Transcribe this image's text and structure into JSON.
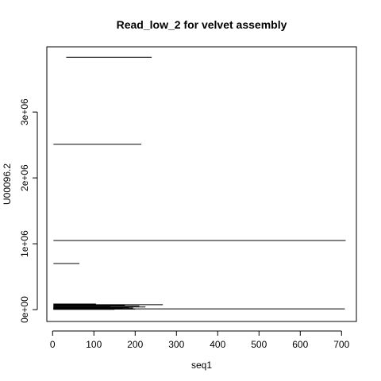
{
  "chart_data": {
    "type": "segments",
    "title": "Read_low_2 for velvet assembly",
    "xlabel": "seq1",
    "ylabel": "U00096.2",
    "xlim": [
      -14,
      736
    ],
    "ylim": [
      -180000,
      3990000
    ],
    "x_ticks": [
      {
        "value": 0,
        "label": "0"
      },
      {
        "value": 100,
        "label": "100"
      },
      {
        "value": 200,
        "label": "200"
      },
      {
        "value": 300,
        "label": "300"
      },
      {
        "value": 400,
        "label": "400"
      },
      {
        "value": 500,
        "label": "500"
      },
      {
        "value": 600,
        "label": "600"
      },
      {
        "value": 700,
        "label": "700"
      }
    ],
    "y_ticks": [
      {
        "value": 0,
        "label": "0e+00"
      },
      {
        "value": 1000000,
        "label": "1e+06"
      },
      {
        "value": 2000000,
        "label": "2e+06"
      },
      {
        "value": 3000000,
        "label": "3e+06"
      }
    ],
    "segments": [
      {
        "x0": 33,
        "x1": 240,
        "y": 3830000
      },
      {
        "x0": 2,
        "x1": 215,
        "y": 2510000
      },
      {
        "x0": 2,
        "x1": 710,
        "y": 1050000
      },
      {
        "x0": 2,
        "x1": 65,
        "y": 700000
      },
      {
        "x0": 2,
        "x1": 267,
        "y": 75000
      },
      {
        "x0": 2,
        "x1": 105,
        "y": 85000
      },
      {
        "x0": 2,
        "x1": 175,
        "y": 65000
      },
      {
        "x0": 2,
        "x1": 210,
        "y": 55000
      },
      {
        "x0": 2,
        "x1": 140,
        "y": 50000
      },
      {
        "x0": 2,
        "x1": 225,
        "y": 40000
      },
      {
        "x0": 2,
        "x1": 185,
        "y": 35000
      },
      {
        "x0": 2,
        "x1": 160,
        "y": 30000
      },
      {
        "x0": 2,
        "x1": 195,
        "y": 25000
      },
      {
        "x0": 2,
        "x1": 120,
        "y": 22000
      },
      {
        "x0": 2,
        "x1": 170,
        "y": 18000
      },
      {
        "x0": 2,
        "x1": 708,
        "y": 12000
      },
      {
        "x0": 2,
        "x1": 200,
        "y": 8000
      },
      {
        "x0": 2,
        "x1": 150,
        "y": 4000
      }
    ],
    "line_color": "#000000",
    "grid": false,
    "legend": "none"
  }
}
